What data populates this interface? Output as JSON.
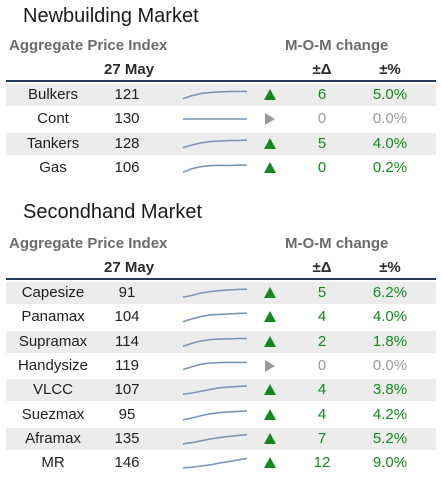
{
  "colors": {
    "up": "#138a1c",
    "flat": "#9a9a9a",
    "rule": "#233a63",
    "spark": "#7f95b6"
  },
  "newbuilding": {
    "title": "Newbuilding Market",
    "index_label": "Aggregate Price Index",
    "mom_label": "M-O-M change",
    "date": "27 May",
    "delta_label": "±Δ",
    "pct_label": "±%",
    "rows": [
      {
        "name": "Bulkers",
        "index": "121",
        "trend": "up",
        "delta": "6",
        "pct": "5.0%",
        "spark": [
          0.2,
          0.45,
          0.62,
          0.72,
          0.76,
          0.78,
          0.8,
          0.8
        ]
      },
      {
        "name": "Cont",
        "index": "130",
        "trend": "flat",
        "delta": "0",
        "pct": "0.0%",
        "spark": [
          0.5,
          0.5,
          0.5,
          0.5,
          0.5,
          0.5,
          0.5,
          0.5
        ]
      },
      {
        "name": "Tankers",
        "index": "128",
        "trend": "up",
        "delta": "5",
        "pct": "4.0%",
        "spark": [
          0.2,
          0.42,
          0.6,
          0.7,
          0.75,
          0.78,
          0.8,
          0.82
        ]
      },
      {
        "name": "Gas",
        "index": "106",
        "trend": "up",
        "delta": "0",
        "pct": "0.2%",
        "spark": [
          0.15,
          0.45,
          0.62,
          0.7,
          0.72,
          0.72,
          0.73,
          0.73
        ]
      }
    ]
  },
  "secondhand": {
    "title": "Secondhand Market",
    "index_label": "Aggregate Price Index",
    "mom_label": "M-O-M change",
    "date": "27 May",
    "delta_label": "±Δ",
    "pct_label": "±%",
    "rows": [
      {
        "name": "Capesize",
        "index": "91",
        "trend": "up",
        "delta": "5",
        "pct": "6.2%",
        "spark": [
          0.15,
          0.3,
          0.5,
          0.62,
          0.7,
          0.75,
          0.8,
          0.82
        ]
      },
      {
        "name": "Panamax",
        "index": "104",
        "trend": "up",
        "delta": "4",
        "pct": "4.0%",
        "spark": [
          0.1,
          0.35,
          0.55,
          0.68,
          0.72,
          0.76,
          0.8,
          0.82
        ]
      },
      {
        "name": "Supramax",
        "index": "114",
        "trend": "up",
        "delta": "2",
        "pct": "1.8%",
        "spark": [
          0.15,
          0.4,
          0.58,
          0.7,
          0.74,
          0.76,
          0.78,
          0.79
        ]
      },
      {
        "name": "Handysize",
        "index": "119",
        "trend": "flat",
        "delta": "0",
        "pct": "0.0%",
        "spark": [
          0.2,
          0.45,
          0.65,
          0.75,
          0.78,
          0.8,
          0.8,
          0.8
        ]
      },
      {
        "name": "VLCC",
        "index": "107",
        "trend": "up",
        "delta": "4",
        "pct": "3.8%",
        "spark": [
          0.15,
          0.25,
          0.4,
          0.55,
          0.68,
          0.75,
          0.8,
          0.84
        ]
      },
      {
        "name": "Suezmax",
        "index": "95",
        "trend": "up",
        "delta": "4",
        "pct": "4.2%",
        "spark": [
          0.1,
          0.25,
          0.45,
          0.6,
          0.7,
          0.76,
          0.8,
          0.84
        ]
      },
      {
        "name": "Aframax",
        "index": "135",
        "trend": "up",
        "delta": "7",
        "pct": "5.2%",
        "spark": [
          0.1,
          0.2,
          0.35,
          0.5,
          0.62,
          0.72,
          0.8,
          0.86
        ]
      },
      {
        "name": "MR",
        "index": "146",
        "trend": "up",
        "delta": "12",
        "pct": "9.0%",
        "spark": [
          0.1,
          0.15,
          0.25,
          0.35,
          0.5,
          0.62,
          0.75,
          0.88
        ]
      }
    ]
  }
}
